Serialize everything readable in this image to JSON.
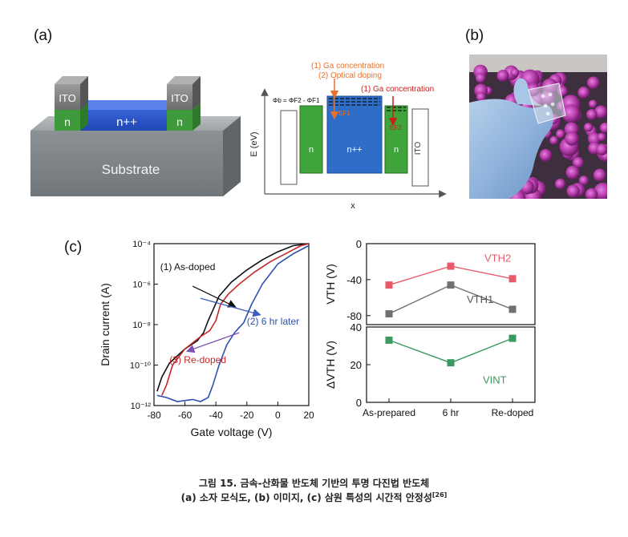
{
  "labels": {
    "a": "(a)",
    "b": "(b)",
    "c": "(c)"
  },
  "device": {
    "ito_left": "ITO",
    "ito_right": "ITO",
    "n_left": "n",
    "n_right": "n",
    "npp": "n++",
    "substrate": "Substrate"
  },
  "band": {
    "y_label": "E (eV)",
    "x_label": "x",
    "ann1": "(1) Ga concentration",
    "ann2": "(2) Optical doping",
    "ann3": "(1) Ga concentration",
    "phi": "Φb = ΦF2 - ΦF1",
    "ef1": "EF1",
    "ef2": "EF2",
    "n_left": "n",
    "npp": "n++",
    "n_right": "n",
    "ito": "ITO",
    "colors": {
      "orange": "#e8702a",
      "red": "#c8201c",
      "blue": "#2f6ec8",
      "green": "#3fa53a"
    }
  },
  "chart_data": [
    {
      "type": "line",
      "xlabel": "Gate voltage (V)",
      "ylabel": "Drain current (A)",
      "xlim": [
        -80,
        20
      ],
      "ylim_log10": [
        -12,
        -4
      ],
      "x_ticks": [
        "-80",
        "-60",
        "-40",
        "-20",
        "0",
        "20"
      ],
      "y_ticks": [
        "10⁻⁴",
        "10⁻⁶",
        "10⁻⁸",
        "10⁻¹⁰",
        "10⁻¹²"
      ],
      "series": [
        {
          "name": "(1) As-doped",
          "color": "#111111",
          "x": [
            -78,
            -75,
            -70,
            -60,
            -52,
            -48,
            -45,
            -42,
            -38,
            -30,
            -20,
            -10,
            0,
            10,
            20
          ],
          "log10_y": [
            -11.3,
            -10.6,
            -9.9,
            -9.2,
            -8.8,
            -8.4,
            -7.8,
            -7.3,
            -6.6,
            -5.9,
            -5.3,
            -4.8,
            -4.4,
            -4.1,
            -4.0
          ]
        },
        {
          "name": "(2) 6 hr later",
          "color": "#2a4fb0",
          "x": [
            -78,
            -72,
            -65,
            -55,
            -50,
            -45,
            -42,
            -38,
            -33,
            -28,
            -22,
            -17,
            -10,
            0,
            10,
            20
          ],
          "log10_y": [
            -11.5,
            -11.6,
            -11.8,
            -11.7,
            -11.8,
            -11.6,
            -11.0,
            -10.0,
            -9.0,
            -8.4,
            -7.9,
            -7.0,
            -6.0,
            -5.0,
            -4.5,
            -4.1
          ]
        },
        {
          "name": "(3) Re-doped",
          "color": "#c62828",
          "x": [
            -75,
            -72,
            -68,
            -60,
            -50,
            -44,
            -40,
            -37,
            -32,
            -25,
            -15,
            -5,
            5,
            15,
            20
          ],
          "log10_y": [
            -11.5,
            -11.0,
            -10.0,
            -9.2,
            -8.6,
            -8.3,
            -7.8,
            -7.0,
            -6.5,
            -6.0,
            -5.4,
            -4.9,
            -4.5,
            -4.1,
            -4.0
          ]
        }
      ],
      "annotations": [
        "(1) As-doped",
        "(2) 6 hr later",
        "(3) Re-doped"
      ]
    },
    {
      "type": "line",
      "categories": [
        "As-prepared",
        "6 hr",
        "Re-doped"
      ],
      "ylabel": "VTH (V)",
      "ylim": [
        -90,
        0
      ],
      "y_ticks": [
        "0",
        "-40",
        "-80"
      ],
      "series": [
        {
          "name": "VTH2",
          "color": "#e85a6a",
          "values": [
            -46,
            -25,
            -39
          ]
        },
        {
          "name": "VTH1",
          "color": "#707070",
          "values": [
            -78,
            -46,
            -73
          ]
        }
      ]
    },
    {
      "type": "line",
      "categories": [
        "As-prepared",
        "6 hr",
        "Re-doped"
      ],
      "ylabel": "ΔVTH (V)",
      "ylim": [
        0,
        40
      ],
      "y_ticks": [
        "40",
        "20",
        "0"
      ],
      "series": [
        {
          "name": "VINT",
          "color": "#3a9a60",
          "values": [
            33,
            21,
            34
          ]
        }
      ]
    }
  ],
  "caption": {
    "line1": "그림 15. 금속-산화물 반도체 기반의 투명 다진법 반도체",
    "line2": "(a) 소자 모식도, (b) 이미지, (c) 삼원 특성의 시간적 안정성",
    "ref": "[26]"
  }
}
